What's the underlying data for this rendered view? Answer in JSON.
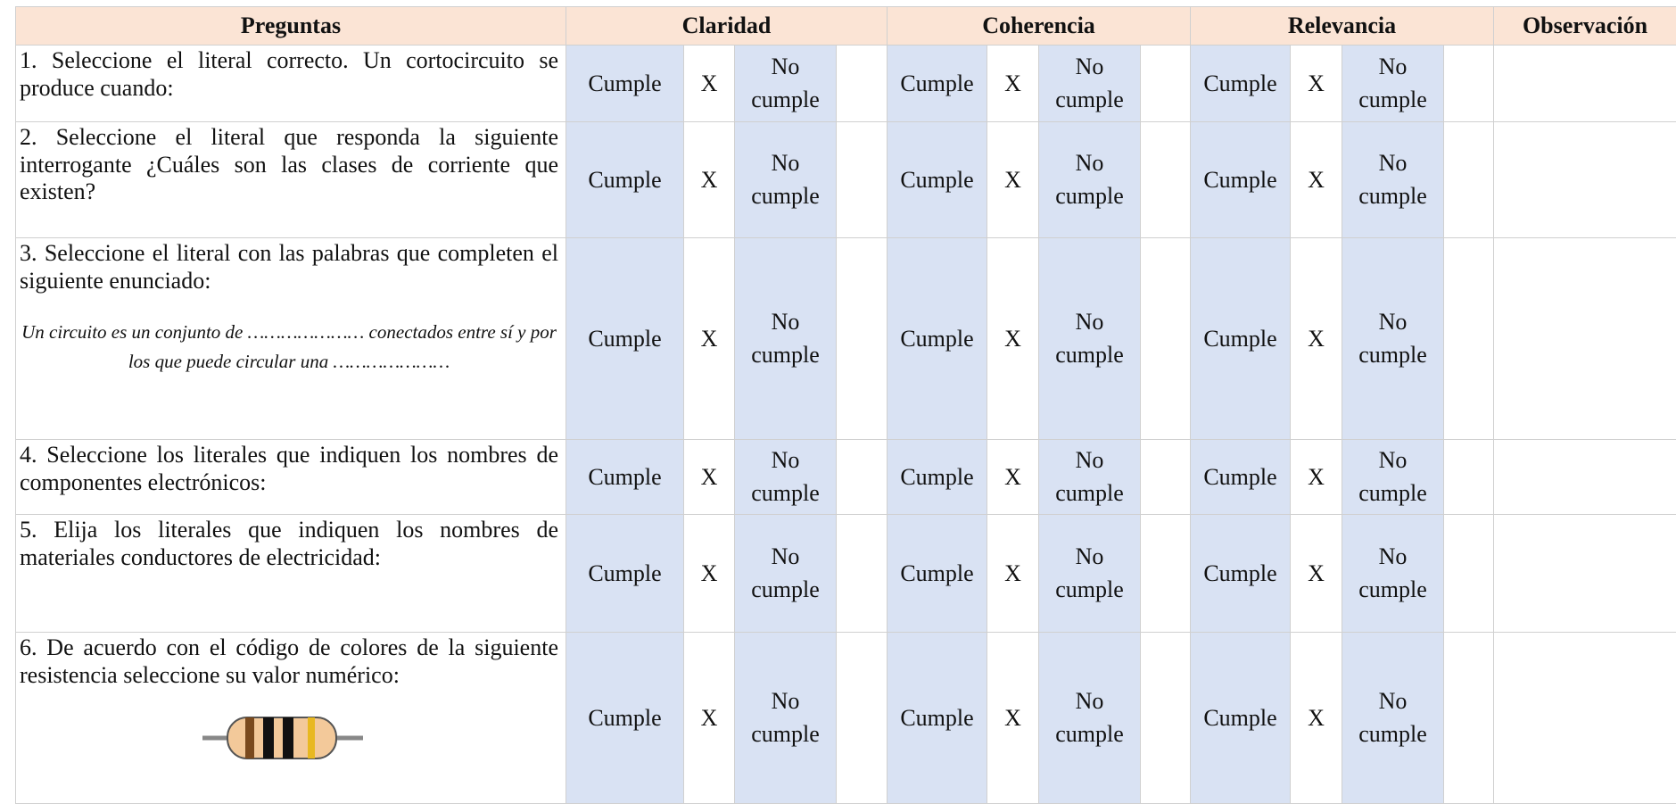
{
  "table": {
    "header": [
      "Preguntas",
      "Claridad",
      "Coherencia",
      "Relevancia",
      "Observación"
    ],
    "rows": [
      {
        "question": "1. Seleccione el literal correcto. Un cortocircuito se produce cuando:",
        "criteria": [
          [
            "Cumple",
            "X",
            "No cumple"
          ],
          [
            "Cumple",
            "X",
            "No cumple"
          ],
          [
            "Cumple",
            "X",
            "No cumple"
          ]
        ]
      },
      {
        "question": "2. Seleccione el literal que responda la siguiente interrogante ¿Cuáles son las clases de corriente que existen?",
        "criteria": [
          [
            "Cumple",
            "X",
            "No cumple"
          ],
          [
            "Cumple",
            "X",
            "No cumple"
          ],
          [
            "Cumple",
            "X",
            "No cumple"
          ]
        ]
      },
      {
        "question": "3. Seleccione el literal con las palabras que completen el siguiente enunciado:",
        "note": "Un circuito es un conjunto de ………………… conectados entre sí y por los que puede circular una …………………",
        "criteria": [
          [
            "Cumple",
            "X",
            "No cumple"
          ],
          [
            "Cumple",
            "X",
            "No cumple"
          ],
          [
            "Cumple",
            "X",
            "No cumple"
          ]
        ]
      },
      {
        "question": "4. Seleccione los literales que indiquen los nombres de componentes electrónicos:",
        "criteria": [
          [
            "Cumple",
            "X",
            "No cumple"
          ],
          [
            "Cumple",
            "X",
            "No cumple"
          ],
          [
            "Cumple",
            "X",
            "No cumple"
          ]
        ]
      },
      {
        "question": "5. Elija los literales que indiquen los nombres de materiales conductores de electricidad:",
        "criteria": [
          [
            "Cumple",
            "X",
            "No cumple"
          ],
          [
            "Cumple",
            "X",
            "No cumple"
          ],
          [
            "Cumple",
            "X",
            "No cumple"
          ]
        ]
      },
      {
        "question": "6. De acuerdo con el código de colores de la siguiente resistencia seleccione su valor numérico:",
        "criteria": [
          [
            "Cumple",
            "X",
            "No cumple"
          ],
          [
            "Cumple",
            "X",
            "No cumple"
          ],
          [
            "Cumple",
            "X",
            "No cumple"
          ]
        ]
      }
    ]
  }
}
